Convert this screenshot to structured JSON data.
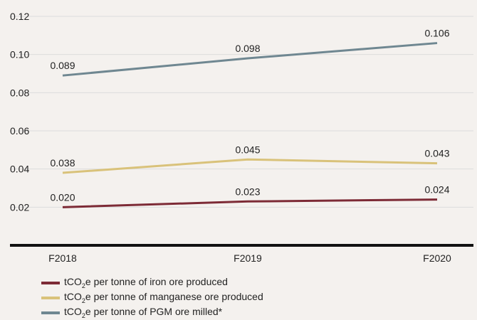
{
  "colors": {
    "iron": "#7d2b36",
    "manganese": "#d9c27a",
    "pgm": "#6f8791",
    "grid": "#dcdcdc",
    "axis": "#111111",
    "text": "#222222"
  },
  "chart_data": {
    "type": "line",
    "categories": [
      "F2018",
      "F2019",
      "F2020"
    ],
    "yticks": [
      "0.02",
      "0.04",
      "0.06",
      "0.08",
      "0.10",
      "0.12"
    ],
    "ylim": [
      0,
      0.125
    ],
    "grid": true,
    "legend_position": "bottom-left",
    "series": [
      {
        "key": "pgm",
        "values": [
          0.089,
          0.098,
          0.106
        ],
        "labels": [
          "0.089",
          "0.098",
          "0.106"
        ],
        "legend": {
          "pre": "tCO",
          "sub": "2",
          "post": "e per tonne of PGM ore milled*"
        }
      },
      {
        "key": "manganese",
        "values": [
          0.038,
          0.045,
          0.043
        ],
        "labels": [
          "0.038",
          "0.045",
          "0.043"
        ],
        "legend": {
          "pre": "tCO",
          "sub": "2",
          "post": "e per tonne of manganese ore produced"
        }
      },
      {
        "key": "iron",
        "values": [
          0.02,
          0.023,
          0.024
        ],
        "labels": [
          "0.020",
          "0.023",
          "0.024"
        ],
        "legend": {
          "pre": "tCO",
          "sub": "2",
          "post": "e per tonne of iron ore produced"
        }
      }
    ]
  }
}
